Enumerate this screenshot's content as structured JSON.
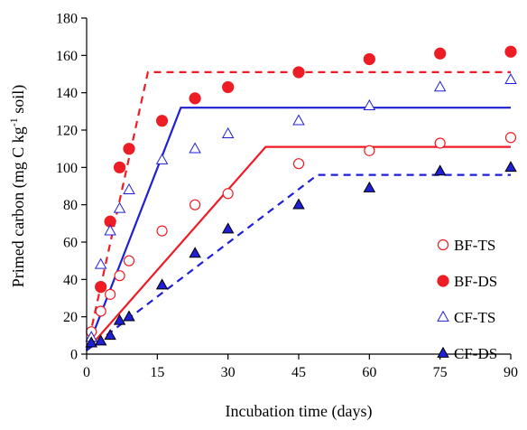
{
  "chart_data": {
    "type": "scatter",
    "xlabel": "Incubation time (days)",
    "ylabel": {
      "parts": [
        {
          "text": "Primed carbon (mg C kg",
          "sup": false
        },
        {
          "text": "-1",
          "sup": true
        },
        {
          "text": " soil)",
          "sup": false
        }
      ]
    },
    "xlim": [
      0,
      90
    ],
    "ylim": [
      0,
      180
    ],
    "x_ticks": [
      0,
      15,
      30,
      45,
      60,
      75,
      90
    ],
    "y_ticks": [
      0,
      20,
      40,
      60,
      80,
      100,
      120,
      140,
      160,
      180
    ],
    "grid": false,
    "legend_position": "right",
    "series": [
      {
        "name": "BF-TS",
        "marker": "circle-open",
        "color": "#ee1c24",
        "points": [
          [
            1,
            12
          ],
          [
            3,
            23
          ],
          [
            5,
            32
          ],
          [
            7,
            42
          ],
          [
            9,
            50
          ],
          [
            16,
            66
          ],
          [
            23,
            80
          ],
          [
            30,
            86
          ],
          [
            45,
            102
          ],
          [
            60,
            109
          ],
          [
            75,
            113
          ],
          [
            90,
            116
          ]
        ],
        "fit": {
          "style": "solid",
          "points": [
            [
              0,
              2
            ],
            [
              38,
              111
            ],
            [
              90,
              111
            ]
          ]
        }
      },
      {
        "name": "BF-DS",
        "marker": "circle-filled",
        "color": "#ee1c24",
        "points": [
          [
            3,
            36
          ],
          [
            5,
            71
          ],
          [
            7,
            100
          ],
          [
            9,
            110
          ],
          [
            16,
            125
          ],
          [
            23,
            137
          ],
          [
            30,
            143
          ],
          [
            45,
            151
          ],
          [
            60,
            158
          ],
          [
            75,
            161
          ],
          [
            90,
            162
          ]
        ],
        "fit": {
          "style": "dashed",
          "points": [
            [
              0,
              2
            ],
            [
              13,
              151
            ],
            [
              90,
              151
            ]
          ]
        }
      },
      {
        "name": "CF-TS",
        "marker": "triangle-open",
        "color": "#1f1fd6",
        "points": [
          [
            1,
            9
          ],
          [
            3,
            48
          ],
          [
            5,
            66
          ],
          [
            7,
            78
          ],
          [
            9,
            88
          ],
          [
            16,
            104
          ],
          [
            23,
            110
          ],
          [
            30,
            118
          ],
          [
            45,
            125
          ],
          [
            60,
            133
          ],
          [
            75,
            143
          ],
          [
            90,
            147
          ]
        ],
        "fit": {
          "style": "solid",
          "points": [
            [
              0,
              2
            ],
            [
              20,
              132
            ],
            [
              90,
              132
            ]
          ]
        }
      },
      {
        "name": "CF-DS",
        "marker": "triangle-filled",
        "color": "#1f1fd6",
        "points": [
          [
            1,
            6
          ],
          [
            3,
            7
          ],
          [
            5,
            10
          ],
          [
            7,
            18
          ],
          [
            9,
            20
          ],
          [
            16,
            37
          ],
          [
            23,
            54
          ],
          [
            30,
            67
          ],
          [
            45,
            80
          ],
          [
            60,
            89
          ],
          [
            75,
            98
          ],
          [
            90,
            100
          ]
        ],
        "fit": {
          "style": "dashed",
          "points": [
            [
              0,
              2
            ],
            [
              49,
              96
            ],
            [
              90,
              96
            ]
          ]
        }
      }
    ]
  }
}
